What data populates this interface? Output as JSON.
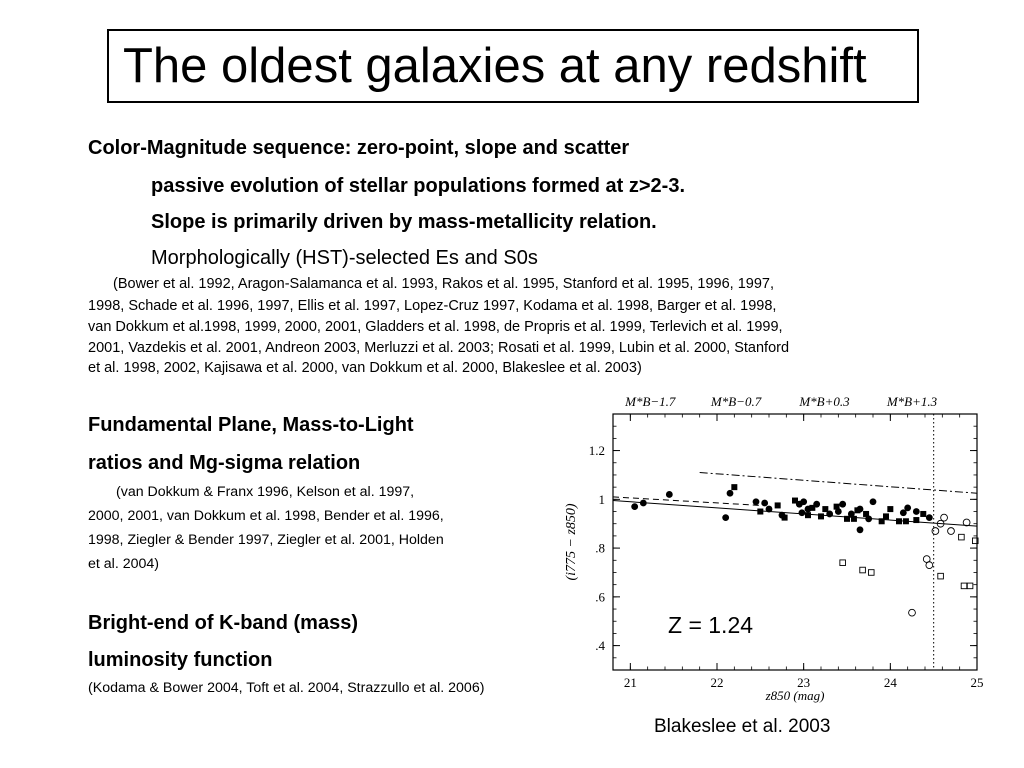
{
  "slide": {
    "title": "The oldest galaxies at any redshift",
    "section1": {
      "heading": "Color-Magnitude sequence: zero-point, slope and scatter",
      "bullet1": "passive evolution of stellar populations formed at z>2-3.",
      "bullet2": "Slope is primarily driven by mass-metallicity relation.",
      "bullet3": "Morphologically (HST)-selected Es and S0s",
      "refs": [
        "(Bower et al. 1992, Aragon-Salamanca et al. 1993, Rakos et al. 1995, Stanford et al. 1995, 1996, 1997,",
        "1998, Schade et al. 1996, 1997, Ellis et al. 1997, Lopez-Cruz 1997, Kodama et al. 1998, Barger et al. 1998,",
        "van Dokkum et al.1998, 1999, 2000, 2001, Gladders et al. 1998, de Propris et al. 1999, Terlevich et al. 1999,",
        "2001, Vazdekis et al. 2001, Andreon 2003, Merluzzi et al. 2003; Rosati et al. 1999, Lubin et al. 2000, Stanford",
        "et al. 1998, 2002, Kajisawa et al. 2000, van Dokkum et al. 2000, Blakeslee et al. 2003)"
      ]
    },
    "section2": {
      "heading_line1": "Fundamental Plane, Mass-to-Light",
      "heading_line2": "ratios and Mg-sigma relation",
      "refs": [
        "(van Dokkum & Franx 1996, Kelson et al. 1997,",
        "2000, 2001, van Dokkum et al. 1998, Bender et al. 1996,",
        "1998, Ziegler & Bender 1997, Ziegler et al. 2001, Holden",
        "et al. 2004)"
      ]
    },
    "section3": {
      "heading_line1": "Bright-end of K-band (mass)",
      "heading_line2": "luminosity function",
      "refs": "(Kodama & Bower 2004, Toft et al. 2004, Strazzullo et al. 2006)"
    },
    "figure": {
      "redshift_label": "Z = 1.24",
      "caption": "Blakeslee et al. 2003"
    }
  },
  "chart_data": {
    "type": "scatter",
    "xlabel": "z850 (mag)",
    "ylabel": "(i775 − z850)",
    "xlim": [
      20.8,
      25
    ],
    "ylim": [
      0.3,
      1.35
    ],
    "xticks": [
      "21",
      "22",
      "23",
      "24",
      "25"
    ],
    "yticks": [
      ".4",
      ".6",
      ".8",
      "1",
      "1.2"
    ],
    "top_labels": [
      "M*B−1.7",
      "M*B−0.7",
      "M*B+0.3",
      "M*B+1.3"
    ],
    "top_label_x": [
      21.23,
      22.22,
      23.24,
      24.25
    ],
    "vertical_dotted_x": 24.5,
    "fit_line": [
      [
        20.8,
        0.995
      ],
      [
        25,
        0.89
      ]
    ],
    "dashed_line": [
      [
        20.8,
        1.01
      ],
      [
        22.5,
        0.975
      ]
    ],
    "dashdot_line": [
      [
        21.8,
        1.11
      ],
      [
        25,
        1.025
      ]
    ],
    "filled_circles": [
      [
        21.05,
        0.97
      ],
      [
        21.15,
        0.985
      ],
      [
        21.45,
        1.02
      ],
      [
        22.1,
        0.925
      ],
      [
        22.15,
        1.025
      ],
      [
        22.45,
        0.99
      ],
      [
        22.6,
        0.96
      ],
      [
        22.75,
        0.935
      ],
      [
        22.95,
        0.98
      ],
      [
        22.98,
        0.945
      ],
      [
        23.0,
        0.99
      ],
      [
        23.05,
        0.96
      ],
      [
        23.15,
        0.98
      ],
      [
        23.3,
        0.94
      ],
      [
        23.4,
        0.95
      ],
      [
        23.45,
        0.98
      ],
      [
        23.55,
        0.94
      ],
      [
        23.65,
        0.96
      ],
      [
        23.75,
        0.92
      ],
      [
        23.8,
        0.99
      ],
      [
        24.15,
        0.945
      ],
      [
        24.2,
        0.965
      ],
      [
        24.3,
        0.95
      ],
      [
        24.45,
        0.925
      ],
      [
        23.65,
        0.875
      ],
      [
        22.55,
        0.985
      ]
    ],
    "filled_squares": [
      [
        22.2,
        1.05
      ],
      [
        22.5,
        0.95
      ],
      [
        22.7,
        0.975
      ],
      [
        22.78,
        0.925
      ],
      [
        22.9,
        0.995
      ],
      [
        23.05,
        0.935
      ],
      [
        23.1,
        0.965
      ],
      [
        23.2,
        0.93
      ],
      [
        23.25,
        0.96
      ],
      [
        23.38,
        0.97
      ],
      [
        23.5,
        0.92
      ],
      [
        23.58,
        0.92
      ],
      [
        23.62,
        0.955
      ],
      [
        23.72,
        0.94
      ],
      [
        23.9,
        0.91
      ],
      [
        23.95,
        0.93
      ],
      [
        24.0,
        0.96
      ],
      [
        24.1,
        0.91
      ],
      [
        24.18,
        0.91
      ],
      [
        24.3,
        0.915
      ],
      [
        24.38,
        0.94
      ]
    ],
    "open_circles": [
      [
        24.42,
        0.755
      ],
      [
        24.45,
        0.73
      ],
      [
        24.52,
        0.87
      ],
      [
        24.58,
        0.9
      ],
      [
        24.62,
        0.925
      ],
      [
        24.7,
        0.87
      ],
      [
        24.88,
        0.905
      ],
      [
        24.25,
        0.535
      ]
    ],
    "open_squares": [
      [
        23.45,
        0.74
      ],
      [
        23.68,
        0.71
      ],
      [
        23.78,
        0.7
      ],
      [
        24.58,
        0.685
      ],
      [
        24.82,
        0.845
      ],
      [
        24.85,
        0.645
      ],
      [
        24.92,
        0.645
      ],
      [
        24.98,
        0.83
      ]
    ]
  }
}
